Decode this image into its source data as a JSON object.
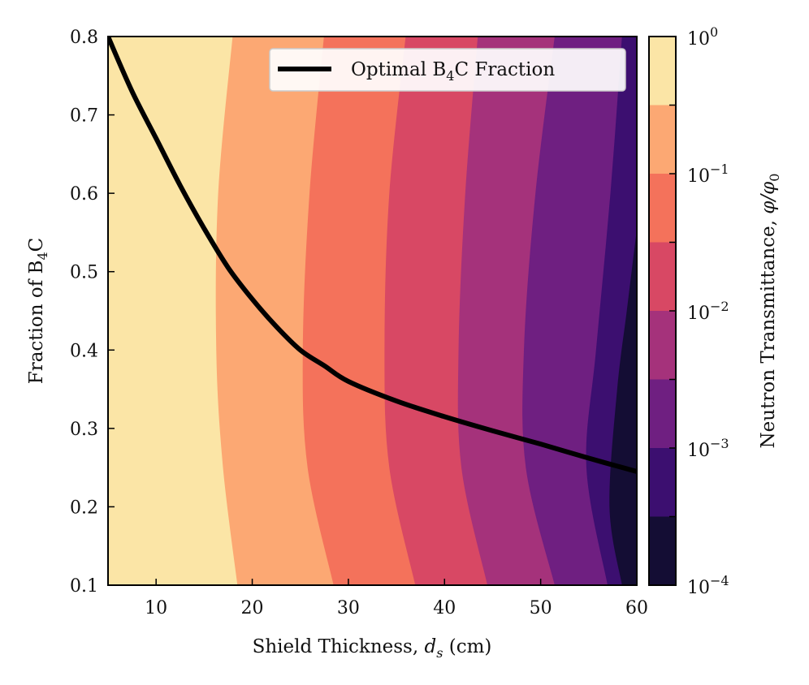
{
  "chart_data": {
    "type": "contour",
    "xlabel": "Shield Thickness, d_s (cm)",
    "ylabel": "Fraction of B4C",
    "colorbar_label": "Neutron Transmittance, φ/φ0",
    "xlim": [
      5,
      60
    ],
    "ylim": [
      0.1,
      0.8
    ],
    "x_ticks": [
      10,
      20,
      30,
      40,
      50,
      60
    ],
    "y_ticks": [
      0.1,
      0.2,
      0.3,
      0.4,
      0.5,
      0.6,
      0.7,
      0.8
    ],
    "colorbar_ticks": [
      {
        "value": 0,
        "label": "10",
        "exp": "0"
      },
      {
        "value": -1,
        "label": "10",
        "exp": "−1"
      },
      {
        "value": -2,
        "label": "10",
        "exp": "−2"
      },
      {
        "value": -3,
        "label": "10",
        "exp": "−3"
      },
      {
        "value": -4,
        "label": "10",
        "exp": "−4"
      }
    ],
    "colorbar_range_log10": [
      -4,
      0
    ],
    "levels_log10": [
      0,
      -0.5,
      -1,
      -1.5,
      -2,
      -2.5,
      -3,
      -3.5,
      -4
    ],
    "band_colors": [
      "#fbe5a6",
      "#fca873",
      "#f4725b",
      "#d84864",
      "#a5327b",
      "#6f1f81",
      "#3c0f70",
      "#140d34"
    ],
    "contour_boundaries": [
      {
        "level": -0.5,
        "points": [
          [
            18,
            0.8
          ],
          [
            16.5,
            0.6
          ],
          [
            16.3,
            0.4
          ],
          [
            17.0,
            0.25
          ],
          [
            18.5,
            0.1
          ]
        ]
      },
      {
        "level": -1.0,
        "points": [
          [
            27.5,
            0.8
          ],
          [
            26.0,
            0.6
          ],
          [
            25.3,
            0.4
          ],
          [
            25.8,
            0.25
          ],
          [
            28.5,
            0.1
          ]
        ]
      },
      {
        "level": -1.5,
        "points": [
          [
            36.0,
            0.8
          ],
          [
            34.3,
            0.6
          ],
          [
            33.8,
            0.4
          ],
          [
            34.3,
            0.25
          ],
          [
            37.0,
            0.1
          ]
        ]
      },
      {
        "level": -2.0,
        "points": [
          [
            43.5,
            0.8
          ],
          [
            42.2,
            0.6
          ],
          [
            41.5,
            0.4
          ],
          [
            41.8,
            0.25
          ],
          [
            44.5,
            0.1
          ]
        ]
      },
      {
        "level": -2.5,
        "points": [
          [
            51.5,
            0.8
          ],
          [
            49.5,
            0.6
          ],
          [
            48.3,
            0.4
          ],
          [
            48.5,
            0.25
          ],
          [
            51.5,
            0.1
          ]
        ]
      },
      {
        "level": -3.0,
        "points": [
          [
            58.5,
            0.8
          ],
          [
            57.3,
            0.6
          ],
          [
            55.8,
            0.4
          ],
          [
            54.8,
            0.25
          ],
          [
            57.0,
            0.1
          ]
        ]
      },
      {
        "level": -3.5,
        "points": [
          [
            60,
            0.55
          ],
          [
            59.0,
            0.45
          ],
          [
            58.0,
            0.35
          ],
          [
            57.2,
            0.2
          ],
          [
            58.5,
            0.1
          ]
        ]
      }
    ],
    "series": [
      {
        "name": "Optimal B4C Fraction",
        "color": "#000000",
        "x": [
          5,
          7.5,
          10,
          12.5,
          15,
          17.5,
          20,
          22.5,
          25,
          27.5,
          30,
          35,
          40,
          45,
          50,
          55,
          60
        ],
        "y": [
          0.8,
          0.73,
          0.67,
          0.61,
          0.555,
          0.505,
          0.465,
          0.43,
          0.4,
          0.38,
          0.36,
          0.335,
          0.315,
          0.297,
          0.28,
          0.262,
          0.245
        ]
      }
    ],
    "legend": {
      "position": "top-right",
      "label": "Optimal B4C Fraction"
    }
  },
  "labels": {
    "xlabel_main": "Shield Thickness, ",
    "xlabel_var": "d",
    "xlabel_sub": "s",
    "xlabel_unit": " (cm)",
    "ylabel_main": "Fraction of B",
    "ylabel_sub": "4",
    "ylabel_end": "C",
    "cbar_main": "Neutron Transmittance, ",
    "cbar_var": "φ/φ",
    "cbar_sub": "0",
    "legend_main": "Optimal B",
    "legend_sub": "4",
    "legend_end": "C Fraction"
  }
}
